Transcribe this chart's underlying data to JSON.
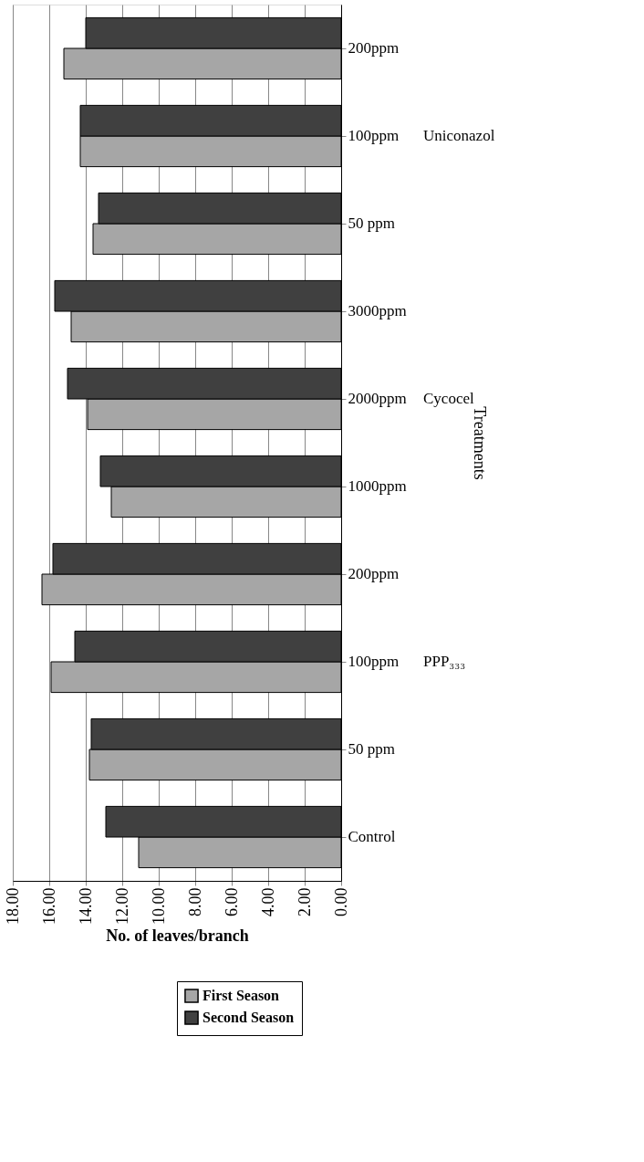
{
  "chart_data": {
    "type": "bar",
    "orientation": "horizontal",
    "xlabel": "No. of leaves/branch",
    "ylabel": "Treatments",
    "categories": [
      "200ppm",
      "100ppm",
      "50 ppm",
      "3000ppm",
      "2000ppm",
      "1000ppm",
      "200ppm",
      "100ppm",
      "50 ppm",
      "Control"
    ],
    "series": [
      {
        "name": "First Season",
        "color": "#a6a6a6",
        "values": [
          15.2,
          14.3,
          13.6,
          14.8,
          13.9,
          12.6,
          16.4,
          15.9,
          13.8,
          11.1
        ]
      },
      {
        "name": "Second Season",
        "color": "#404040",
        "values": [
          14.0,
          14.3,
          13.3,
          15.7,
          15.0,
          13.2,
          15.8,
          14.6,
          13.7,
          12.9
        ]
      }
    ],
    "xlim": [
      18,
      0
    ],
    "xticks": [
      {
        "value": 18,
        "label": "18.00"
      },
      {
        "value": 16,
        "label": "16.00"
      },
      {
        "value": 14,
        "label": "14.00"
      },
      {
        "value": 12,
        "label": "12.00"
      },
      {
        "value": 10,
        "label": "10.00"
      },
      {
        "value": 8,
        "label": "8.00"
      },
      {
        "value": 6,
        "label": "6.00"
      },
      {
        "value": 4,
        "label": "4.00"
      },
      {
        "value": 2,
        "label": "2.00"
      },
      {
        "value": 0,
        "label": "0.00"
      }
    ],
    "annotations": [
      "Uniconazol",
      "Cycocel",
      "PPP₃₃₃"
    ],
    "grid": "x",
    "legend": "bottom right"
  }
}
